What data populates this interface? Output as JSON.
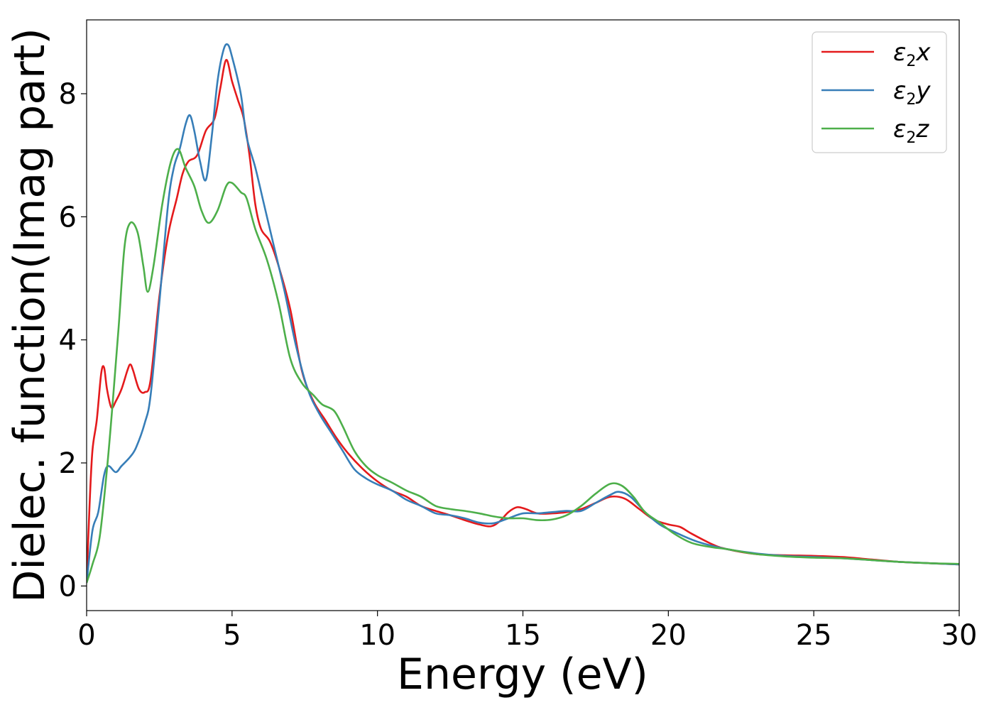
{
  "chart_data": {
    "type": "line",
    "xlabel": "Energy (eV)",
    "ylabel": "Dielec. function(Imag part)",
    "xlim": [
      0,
      30
    ],
    "ylim": [
      -0.4,
      9.2
    ],
    "xticks": [
      0,
      5,
      10,
      15,
      20,
      25,
      30
    ],
    "yticks": [
      0,
      2,
      4,
      6,
      8
    ],
    "grid": false,
    "legend_position": "top-right",
    "series": [
      {
        "name": "ε2x",
        "legend": {
          "sym": "ε",
          "sub": "2",
          "var": "x"
        },
        "color": "#e41a1c",
        "points": [
          [
            0,
            0.05
          ],
          [
            0.1,
            1.3
          ],
          [
            0.2,
            2.2
          ],
          [
            0.35,
            2.7
          ],
          [
            0.5,
            3.45
          ],
          [
            0.6,
            3.55
          ],
          [
            0.7,
            3.2
          ],
          [
            0.85,
            2.9
          ],
          [
            1.0,
            3.0
          ],
          [
            1.2,
            3.2
          ],
          [
            1.4,
            3.5
          ],
          [
            1.5,
            3.6
          ],
          [
            1.6,
            3.5
          ],
          [
            1.8,
            3.2
          ],
          [
            2.0,
            3.15
          ],
          [
            2.2,
            3.35
          ],
          [
            2.5,
            4.7
          ],
          [
            2.8,
            5.7
          ],
          [
            3.1,
            6.3
          ],
          [
            3.3,
            6.7
          ],
          [
            3.5,
            6.9
          ],
          [
            3.8,
            7.0
          ],
          [
            4.1,
            7.4
          ],
          [
            4.4,
            7.6
          ],
          [
            4.6,
            8.1
          ],
          [
            4.8,
            8.55
          ],
          [
            5.0,
            8.2
          ],
          [
            5.2,
            7.9
          ],
          [
            5.4,
            7.6
          ],
          [
            5.6,
            7.0
          ],
          [
            5.8,
            6.2
          ],
          [
            6.0,
            5.8
          ],
          [
            6.3,
            5.6
          ],
          [
            6.6,
            5.2
          ],
          [
            7.0,
            4.5
          ],
          [
            7.4,
            3.5
          ],
          [
            7.8,
            3.0
          ],
          [
            8.2,
            2.7
          ],
          [
            8.6,
            2.4
          ],
          [
            9.0,
            2.15
          ],
          [
            9.5,
            1.9
          ],
          [
            10.0,
            1.7
          ],
          [
            10.5,
            1.55
          ],
          [
            11.0,
            1.45
          ],
          [
            11.5,
            1.3
          ],
          [
            12.0,
            1.22
          ],
          [
            12.5,
            1.15
          ],
          [
            13.0,
            1.07
          ],
          [
            13.5,
            1.0
          ],
          [
            13.9,
            0.97
          ],
          [
            14.2,
            1.05
          ],
          [
            14.5,
            1.2
          ],
          [
            14.8,
            1.28
          ],
          [
            15.1,
            1.25
          ],
          [
            15.5,
            1.18
          ],
          [
            16.0,
            1.18
          ],
          [
            16.5,
            1.2
          ],
          [
            17.0,
            1.25
          ],
          [
            17.5,
            1.35
          ],
          [
            18.0,
            1.45
          ],
          [
            18.5,
            1.42
          ],
          [
            19.0,
            1.25
          ],
          [
            19.5,
            1.08
          ],
          [
            20.0,
            1.0
          ],
          [
            20.4,
            0.96
          ],
          [
            20.8,
            0.85
          ],
          [
            21.5,
            0.68
          ],
          [
            22.0,
            0.6
          ],
          [
            23.0,
            0.52
          ],
          [
            24.0,
            0.5
          ],
          [
            25.0,
            0.49
          ],
          [
            26.0,
            0.47
          ],
          [
            27.0,
            0.43
          ],
          [
            28.0,
            0.39
          ],
          [
            29.0,
            0.37
          ],
          [
            30.0,
            0.35
          ]
        ]
      },
      {
        "name": "ε2y",
        "legend": {
          "sym": "ε",
          "sub": "2",
          "var": "y"
        },
        "color": "#377eb8",
        "points": [
          [
            0,
            0.05
          ],
          [
            0.2,
            0.9
          ],
          [
            0.4,
            1.2
          ],
          [
            0.6,
            1.8
          ],
          [
            0.75,
            1.95
          ],
          [
            1.0,
            1.85
          ],
          [
            1.2,
            1.95
          ],
          [
            1.5,
            2.1
          ],
          [
            1.7,
            2.25
          ],
          [
            2.0,
            2.65
          ],
          [
            2.2,
            3.1
          ],
          [
            2.5,
            4.6
          ],
          [
            2.8,
            6.2
          ],
          [
            3.0,
            6.8
          ],
          [
            3.2,
            7.1
          ],
          [
            3.4,
            7.5
          ],
          [
            3.55,
            7.65
          ],
          [
            3.7,
            7.4
          ],
          [
            3.9,
            6.9
          ],
          [
            4.1,
            6.6
          ],
          [
            4.3,
            7.3
          ],
          [
            4.5,
            8.2
          ],
          [
            4.7,
            8.7
          ],
          [
            4.85,
            8.8
          ],
          [
            5.0,
            8.6
          ],
          [
            5.3,
            8.0
          ],
          [
            5.5,
            7.3
          ],
          [
            5.8,
            6.8
          ],
          [
            6.1,
            6.2
          ],
          [
            6.4,
            5.6
          ],
          [
            6.8,
            4.8
          ],
          [
            7.2,
            3.9
          ],
          [
            7.6,
            3.2
          ],
          [
            8.0,
            2.8
          ],
          [
            8.4,
            2.5
          ],
          [
            8.8,
            2.2
          ],
          [
            9.2,
            1.9
          ],
          [
            9.6,
            1.75
          ],
          [
            10.0,
            1.65
          ],
          [
            10.5,
            1.55
          ],
          [
            11.0,
            1.4
          ],
          [
            11.5,
            1.3
          ],
          [
            12.0,
            1.18
          ],
          [
            12.5,
            1.15
          ],
          [
            13.0,
            1.1
          ],
          [
            13.5,
            1.03
          ],
          [
            14.0,
            1.02
          ],
          [
            14.5,
            1.1
          ],
          [
            15.0,
            1.18
          ],
          [
            15.5,
            1.18
          ],
          [
            16.0,
            1.2
          ],
          [
            16.5,
            1.22
          ],
          [
            17.0,
            1.22
          ],
          [
            17.5,
            1.35
          ],
          [
            18.0,
            1.48
          ],
          [
            18.3,
            1.53
          ],
          [
            18.7,
            1.45
          ],
          [
            19.2,
            1.2
          ],
          [
            19.7,
            1.0
          ],
          [
            20.2,
            0.88
          ],
          [
            21.0,
            0.72
          ],
          [
            22.0,
            0.6
          ],
          [
            23.0,
            0.53
          ],
          [
            24.0,
            0.49
          ],
          [
            25.0,
            0.47
          ],
          [
            26.0,
            0.45
          ],
          [
            27.0,
            0.42
          ],
          [
            28.0,
            0.39
          ],
          [
            29.0,
            0.37
          ],
          [
            30.0,
            0.35
          ]
        ]
      },
      {
        "name": "ε2z",
        "legend": {
          "sym": "ε",
          "sub": "2",
          "var": "z"
        },
        "color": "#4daf4a",
        "points": [
          [
            0,
            0.05
          ],
          [
            0.2,
            0.35
          ],
          [
            0.45,
            0.8
          ],
          [
            0.7,
            1.9
          ],
          [
            0.9,
            3.0
          ],
          [
            1.1,
            4.2
          ],
          [
            1.3,
            5.5
          ],
          [
            1.5,
            5.9
          ],
          [
            1.75,
            5.75
          ],
          [
            1.95,
            5.2
          ],
          [
            2.1,
            4.78
          ],
          [
            2.3,
            5.2
          ],
          [
            2.6,
            6.2
          ],
          [
            2.9,
            6.9
          ],
          [
            3.15,
            7.1
          ],
          [
            3.4,
            6.8
          ],
          [
            3.7,
            6.5
          ],
          [
            3.95,
            6.1
          ],
          [
            4.2,
            5.9
          ],
          [
            4.5,
            6.1
          ],
          [
            4.8,
            6.5
          ],
          [
            5.0,
            6.55
          ],
          [
            5.3,
            6.4
          ],
          [
            5.5,
            6.3
          ],
          [
            5.8,
            5.8
          ],
          [
            6.2,
            5.3
          ],
          [
            6.6,
            4.6
          ],
          [
            7.0,
            3.7
          ],
          [
            7.4,
            3.3
          ],
          [
            7.8,
            3.1
          ],
          [
            8.1,
            2.95
          ],
          [
            8.5,
            2.85
          ],
          [
            8.8,
            2.6
          ],
          [
            9.2,
            2.2
          ],
          [
            9.6,
            1.95
          ],
          [
            10.0,
            1.8
          ],
          [
            10.5,
            1.68
          ],
          [
            11.0,
            1.55
          ],
          [
            11.5,
            1.45
          ],
          [
            12.0,
            1.3
          ],
          [
            12.5,
            1.25
          ],
          [
            13.0,
            1.22
          ],
          [
            13.5,
            1.18
          ],
          [
            14.0,
            1.13
          ],
          [
            14.5,
            1.1
          ],
          [
            15.0,
            1.1
          ],
          [
            15.5,
            1.07
          ],
          [
            16.0,
            1.08
          ],
          [
            16.5,
            1.15
          ],
          [
            17.0,
            1.3
          ],
          [
            17.5,
            1.5
          ],
          [
            18.0,
            1.66
          ],
          [
            18.4,
            1.63
          ],
          [
            18.8,
            1.45
          ],
          [
            19.2,
            1.2
          ],
          [
            19.7,
            1.03
          ],
          [
            20.2,
            0.85
          ],
          [
            20.8,
            0.7
          ],
          [
            21.5,
            0.63
          ],
          [
            22.0,
            0.6
          ],
          [
            23.0,
            0.52
          ],
          [
            24.0,
            0.48
          ],
          [
            25.0,
            0.46
          ],
          [
            26.0,
            0.45
          ],
          [
            27.0,
            0.42
          ],
          [
            28.0,
            0.39
          ],
          [
            29.0,
            0.37
          ],
          [
            30.0,
            0.36
          ]
        ]
      }
    ]
  }
}
